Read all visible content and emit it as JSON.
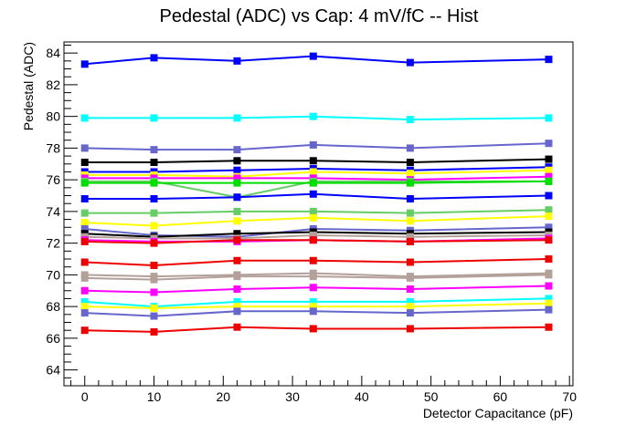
{
  "chart_data": {
    "type": "line",
    "title": "Pedestal (ADC) vs Cap: 4 mV/fC -- Hist",
    "xlabel": "Detector Capacitance (pF)",
    "ylabel": "Pedestal (ADC)",
    "xlim": [
      -3,
      70.5
    ],
    "ylim": [
      63,
      84.7
    ],
    "xticks": [
      0,
      10,
      20,
      30,
      40,
      50,
      60,
      70
    ],
    "yticks": [
      64,
      66,
      68,
      70,
      72,
      74,
      76,
      78,
      80,
      82,
      84
    ],
    "grid": false,
    "legend": "none",
    "x": [
      0,
      10,
      22,
      33,
      47,
      67
    ],
    "series": [
      {
        "color": "#0000ff",
        "values": [
          83.3,
          83.7,
          83.5,
          83.8,
          83.4,
          83.6
        ]
      },
      {
        "color": "#00ffff",
        "values": [
          79.9,
          79.9,
          79.9,
          80.0,
          79.8,
          79.9
        ]
      },
      {
        "color": "#6666cc",
        "values": [
          78.0,
          77.9,
          77.9,
          78.2,
          78.0,
          78.3
        ]
      },
      {
        "color": "#000000",
        "values": [
          77.1,
          77.1,
          77.2,
          77.2,
          77.1,
          77.3
        ]
      },
      {
        "color": "#0000ff",
        "values": [
          76.5,
          76.5,
          76.6,
          76.7,
          76.6,
          76.8
        ]
      },
      {
        "color": "#ffff00",
        "values": [
          76.3,
          76.3,
          76.2,
          76.5,
          76.4,
          76.6
        ]
      },
      {
        "color": "#ff00ff",
        "values": [
          76.1,
          76.1,
          76.1,
          76.1,
          76.0,
          76.2
        ]
      },
      {
        "color": "#66cc66",
        "values": [
          75.9,
          75.9,
          74.9,
          75.9,
          75.9,
          75.9
        ]
      },
      {
        "color": "#00dd00",
        "values": [
          75.8,
          75.8,
          75.8,
          75.8,
          75.8,
          75.9
        ]
      },
      {
        "color": "#0000ff",
        "values": [
          74.8,
          74.8,
          74.9,
          75.1,
          74.8,
          75.0
        ]
      },
      {
        "color": "#66cc66",
        "values": [
          73.9,
          73.9,
          74.0,
          74.0,
          73.9,
          74.1
        ]
      },
      {
        "color": "#ffff00",
        "values": [
          73.3,
          73.1,
          73.4,
          73.6,
          73.4,
          73.7
        ]
      },
      {
        "color": "#6666cc",
        "values": [
          72.9,
          72.5,
          72.4,
          72.9,
          72.8,
          73.0
        ]
      },
      {
        "color": "#000000",
        "values": [
          72.6,
          72.4,
          72.6,
          72.7,
          72.6,
          72.7
        ]
      },
      {
        "color": "#b4a09a",
        "values": [
          72.4,
          72.3,
          72.3,
          72.5,
          72.4,
          72.5
        ]
      },
      {
        "color": "#ff00ff",
        "values": [
          72.2,
          72.1,
          72.1,
          72.2,
          72.1,
          72.3
        ]
      },
      {
        "color": "#ee0000",
        "values": [
          72.1,
          72.0,
          72.2,
          72.2,
          72.1,
          72.2
        ]
      },
      {
        "color": "#ee0000",
        "values": [
          70.8,
          70.6,
          70.9,
          70.9,
          70.8,
          71.0
        ]
      },
      {
        "color": "#b4a09a",
        "values": [
          70.0,
          69.9,
          70.0,
          70.1,
          69.9,
          70.1
        ]
      },
      {
        "color": "#b4a09a",
        "values": [
          69.8,
          69.7,
          69.9,
          69.9,
          69.8,
          70.0
        ]
      },
      {
        "color": "#ff00ff",
        "values": [
          69.0,
          68.9,
          69.1,
          69.2,
          69.1,
          69.3
        ]
      },
      {
        "color": "#00ffff",
        "values": [
          68.3,
          68.0,
          68.3,
          68.3,
          68.3,
          68.5
        ]
      },
      {
        "color": "#ffff00",
        "values": [
          68.0,
          67.9,
          68.0,
          68.0,
          68.0,
          68.2
        ]
      },
      {
        "color": "#6666cc",
        "values": [
          67.6,
          67.4,
          67.7,
          67.7,
          67.6,
          67.8
        ]
      },
      {
        "color": "#ee0000",
        "values": [
          66.5,
          66.4,
          66.7,
          66.6,
          66.6,
          66.7
        ]
      }
    ]
  }
}
